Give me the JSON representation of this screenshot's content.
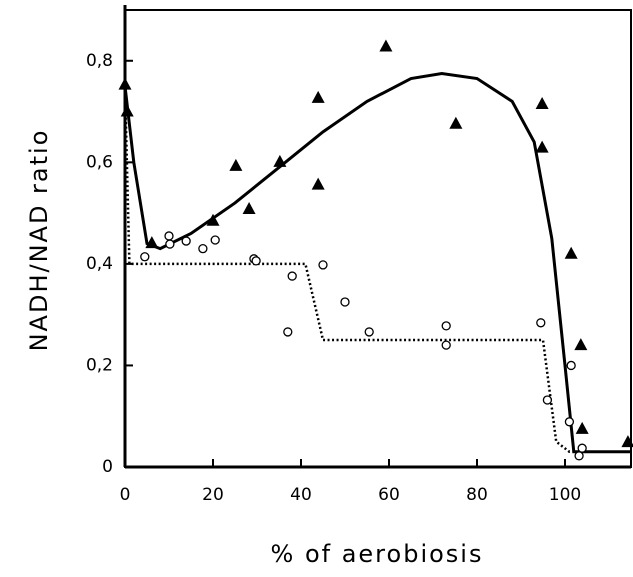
{
  "chart_data": {
    "type": "scatter",
    "xlabel": "% of aerobiosis",
    "ylabel": "NADH/NAD ratio",
    "xlim": [
      0,
      115
    ],
    "ylim": [
      0,
      0.9
    ],
    "xticks": [
      0,
      20,
      40,
      60,
      80,
      100
    ],
    "yticks": [
      0,
      {
        "value": 0.2,
        "label": "0,2"
      },
      {
        "value": 0.4,
        "label": "0,4"
      },
      {
        "value": 0.6,
        "label": "0,6"
      },
      {
        "value": 0.8,
        "label": "0,8"
      }
    ],
    "series": [
      {
        "marker": "triangle",
        "color": "#000000",
        "x": [
          0,
          0.5,
          6.1,
          20,
          25.2,
          28.2,
          35.2,
          43.9,
          43.9,
          59.3,
          75.2,
          94.8,
          94.8,
          101.4,
          103.6,
          103.9,
          114.3
        ],
        "values": [
          0.753,
          0.7,
          0.441,
          0.485,
          0.593,
          0.508,
          0.601,
          0.727,
          0.556,
          0.828,
          0.676,
          0.715,
          0.629,
          0.42,
          0.24,
          0.075,
          0.049
        ]
      },
      {
        "marker": "circle",
        "color": "#000000",
        "x": [
          4.5,
          10,
          10.2,
          13.9,
          17.7,
          20.5,
          29.3,
          29.8,
          38,
          37,
          45,
          50,
          55.5,
          73,
          73,
          94.5,
          96,
          101,
          101.4,
          103.2,
          103.9
        ],
        "values": [
          0.414,
          0.455,
          0.439,
          0.445,
          0.43,
          0.447,
          0.41,
          0.406,
          0.376,
          0.266,
          0.398,
          0.325,
          0.266,
          0.278,
          0.24,
          0.284,
          0.132,
          0.089,
          0.2,
          0.022,
          0.037
        ]
      }
    ],
    "lines": [
      {
        "style": "solid",
        "color": "#000000",
        "x": [
          0,
          2,
          5,
          8,
          15,
          25,
          35,
          45,
          55,
          65,
          72,
          80,
          88,
          93,
          97,
          100,
          102,
          115
        ],
        "values": [
          0.75,
          0.6,
          0.44,
          0.43,
          0.46,
          0.52,
          0.59,
          0.66,
          0.72,
          0.765,
          0.775,
          0.765,
          0.72,
          0.64,
          0.45,
          0.2,
          0.03,
          0.03
        ]
      },
      {
        "style": "dotted",
        "color": "#000000",
        "x": [
          0,
          1,
          41,
          45,
          95,
          98,
          101,
          115
        ],
        "values": [
          0.75,
          0.4,
          0.4,
          0.25,
          0.25,
          0.05,
          0.03,
          0.03
        ]
      }
    ]
  }
}
